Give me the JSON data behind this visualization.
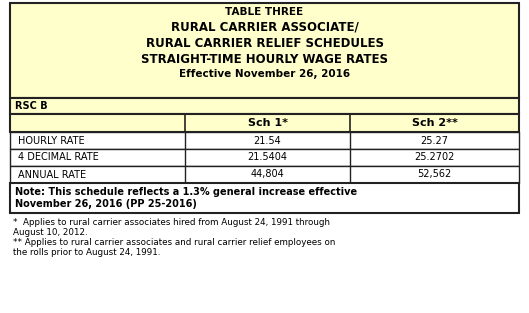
{
  "title_lines": [
    "TABLE THREE",
    "RURAL CARRIER ASSOCIATE/",
    "RURAL CARRIER RELIEF SCHEDULES",
    "STRAIGHT-TIME HOURLY WAGE RATES"
  ],
  "subtitle": "Effective November 26, 2016",
  "rsc_label": "RSC B",
  "col_headers": [
    "",
    "Sch 1*",
    "Sch 2**"
  ],
  "rows": [
    [
      "HOURLY RATE",
      "21.54",
      "25.27"
    ],
    [
      "4 DECIMAL RATE",
      "21.5404",
      "25.2702"
    ],
    [
      "ANNUAL RATE",
      "44,804",
      "52,562"
    ]
  ],
  "note_line1": "Note: This schedule reflects a 1.3% general increase effective",
  "note_line2": "November 26, 2016 (PP 25-2016)",
  "footnote1": "*  Applies to rural carrier associates hired from August 24, 1991 through",
  "footnote1b": "August 10, 2012.",
  "footnote2": "** Applies to rural carrier associates and rural carrier relief employees on",
  "footnote2b": "the rolls prior to August 24, 1991.",
  "bg_yellow": "#ffffcc",
  "bg_white": "#ffffff",
  "border_color": "#222222",
  "text_color": "#000000"
}
